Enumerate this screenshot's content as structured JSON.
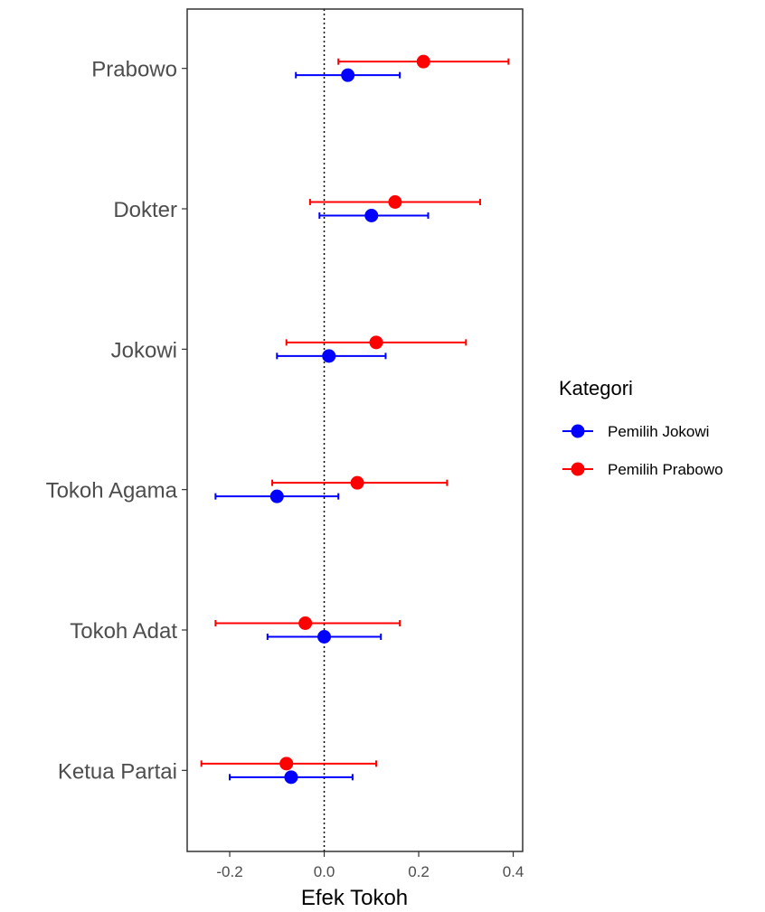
{
  "chart_data": {
    "type": "scatter",
    "subtype": "forest-plot",
    "title": "",
    "xlabel": "Efek Tokoh",
    "ylabel": "",
    "xlim": [
      -0.29,
      0.42
    ],
    "x_ticks": [
      "-0.2",
      "0.0",
      "0.2",
      "0.4"
    ],
    "x_tick_values": [
      -0.2,
      0.0,
      0.2,
      0.4
    ],
    "reference_line": 0.0,
    "grid": false,
    "categories": [
      "Prabowo",
      "Dokter",
      "Jokowi",
      "Tokoh Agama",
      "Tokoh Adat",
      "Ketua Partai"
    ],
    "legend": {
      "title": "Kategori",
      "placement": "right",
      "entries": [
        "Pemilih Jokowi",
        "Pemilih Prabowo"
      ]
    },
    "series": [
      {
        "name": "Pemilih Jokowi",
        "color": "#0000ff",
        "estimates": [
          0.05,
          0.1,
          0.01,
          -0.1,
          0.0,
          -0.07
        ],
        "lower": [
          -0.06,
          -0.01,
          -0.1,
          -0.23,
          -0.12,
          -0.2
        ],
        "upper": [
          0.16,
          0.22,
          0.13,
          0.03,
          0.12,
          0.06
        ]
      },
      {
        "name": "Pemilih Prabowo",
        "color": "#ff0000",
        "estimates": [
          0.21,
          0.15,
          0.11,
          0.07,
          -0.04,
          -0.08
        ],
        "lower": [
          0.03,
          -0.03,
          -0.08,
          -0.11,
          -0.23,
          -0.26
        ],
        "upper": [
          0.39,
          0.33,
          0.3,
          0.26,
          0.16,
          0.11
        ]
      }
    ]
  }
}
